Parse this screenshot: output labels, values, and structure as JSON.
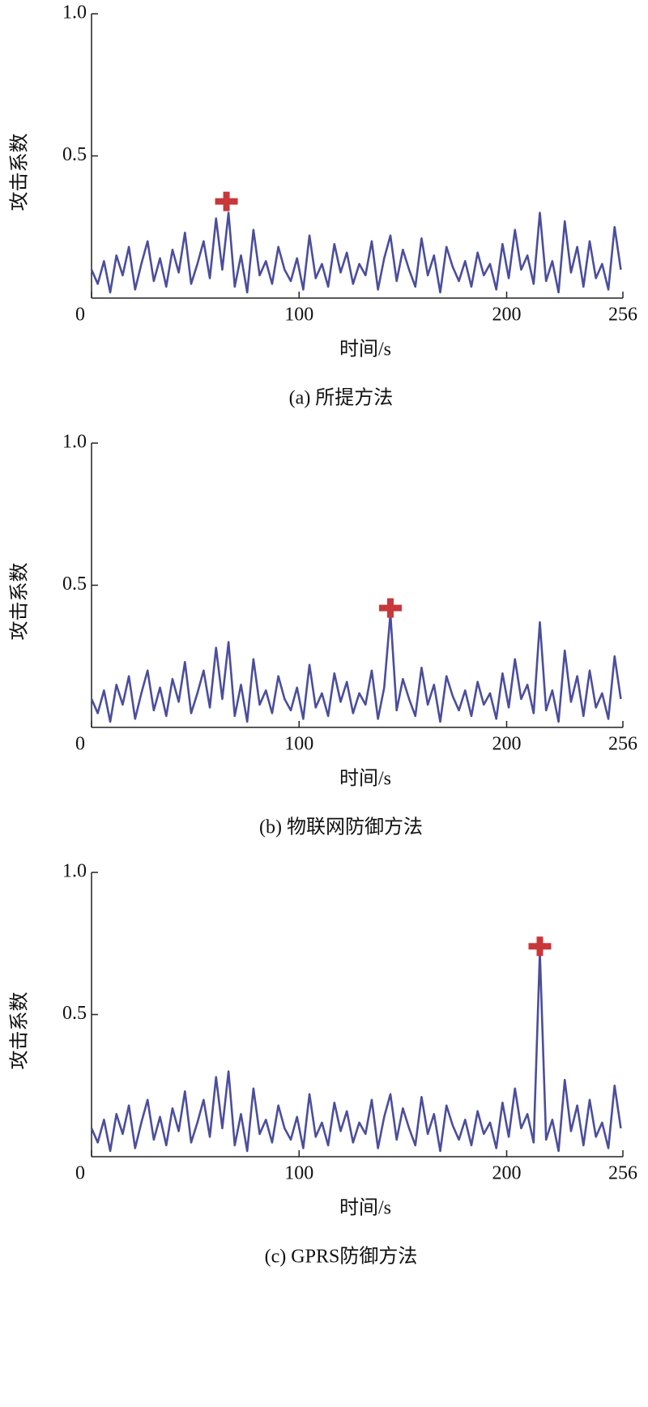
{
  "chart_data": [
    {
      "type": "line",
      "caption": "(a) 所提方法",
      "x_label": "时间/s",
      "y_label": "攻击系数",
      "xlim": [
        0,
        256
      ],
      "xticks": [
        0,
        100,
        200,
        256
      ],
      "ylim": [
        0,
        1
      ],
      "yticks": [
        0.5,
        {
          "value": 1,
          "label": "1.0"
        }
      ],
      "x": [
        0,
        3,
        6,
        9,
        12,
        15,
        18,
        21,
        24,
        27,
        30,
        33,
        36,
        39,
        42,
        45,
        48,
        51,
        54,
        57,
        60,
        63,
        66,
        69,
        72,
        75,
        78,
        81,
        84,
        87,
        90,
        93,
        96,
        99,
        102,
        105,
        108,
        111,
        114,
        117,
        120,
        123,
        126,
        129,
        132,
        135,
        138,
        141,
        144,
        147,
        150,
        153,
        156,
        159,
        162,
        165,
        168,
        171,
        174,
        177,
        180,
        183,
        186,
        189,
        192,
        195,
        198,
        201,
        204,
        207,
        210,
        213,
        216,
        219,
        222,
        225,
        228,
        231,
        234,
        237,
        240,
        243,
        246,
        249,
        252,
        255
      ],
      "series": [
        {
          "color": "#4b4e9b",
          "values": [
            0.1,
            0.05,
            0.13,
            0.02,
            0.15,
            0.08,
            0.18,
            0.03,
            0.12,
            0.2,
            0.06,
            0.14,
            0.04,
            0.17,
            0.09,
            0.23,
            0.05,
            0.12,
            0.2,
            0.07,
            0.28,
            0.1,
            0.3,
            0.04,
            0.15,
            0.02,
            0.24,
            0.08,
            0.13,
            0.05,
            0.18,
            0.1,
            0.06,
            0.14,
            0.03,
            0.22,
            0.07,
            0.12,
            0.04,
            0.19,
            0.09,
            0.16,
            0.05,
            0.12,
            0.08,
            0.2,
            0.03,
            0.14,
            0.22,
            0.06,
            0.17,
            0.1,
            0.04,
            0.21,
            0.08,
            0.15,
            0.02,
            0.18,
            0.11,
            0.06,
            0.13,
            0.04,
            0.16,
            0.08,
            0.12,
            0.03,
            0.19,
            0.07,
            0.24,
            0.1,
            0.15,
            0.05,
            0.3,
            0.06,
            0.13,
            0.02,
            0.27,
            0.09,
            0.18,
            0.04,
            0.2,
            0.07,
            0.12,
            0.03,
            0.25,
            0.1
          ]
        }
      ],
      "marker": {
        "x": 65,
        "y": 0.34,
        "color": "#c8373a"
      }
    },
    {
      "type": "line",
      "caption": "(b) 物联网防御方法",
      "x_label": "时间/s",
      "y_label": "攻击系数",
      "xlim": [
        0,
        256
      ],
      "xticks": [
        0,
        100,
        200,
        256
      ],
      "ylim": [
        0,
        1
      ],
      "yticks": [
        0.5,
        {
          "value": 1,
          "label": "1.0"
        }
      ],
      "x": [
        0,
        3,
        6,
        9,
        12,
        15,
        18,
        21,
        24,
        27,
        30,
        33,
        36,
        39,
        42,
        45,
        48,
        51,
        54,
        57,
        60,
        63,
        66,
        69,
        72,
        75,
        78,
        81,
        84,
        87,
        90,
        93,
        96,
        99,
        102,
        105,
        108,
        111,
        114,
        117,
        120,
        123,
        126,
        129,
        132,
        135,
        138,
        141,
        144,
        147,
        150,
        153,
        156,
        159,
        162,
        165,
        168,
        171,
        174,
        177,
        180,
        183,
        186,
        189,
        192,
        195,
        198,
        201,
        204,
        207,
        210,
        213,
        216,
        219,
        222,
        225,
        228,
        231,
        234,
        237,
        240,
        243,
        246,
        249,
        252,
        255
      ],
      "series": [
        {
          "color": "#4b4e9b",
          "values": [
            0.1,
            0.05,
            0.13,
            0.02,
            0.15,
            0.08,
            0.18,
            0.03,
            0.12,
            0.2,
            0.06,
            0.14,
            0.04,
            0.17,
            0.09,
            0.23,
            0.05,
            0.12,
            0.2,
            0.07,
            0.28,
            0.1,
            0.3,
            0.04,
            0.15,
            0.02,
            0.24,
            0.08,
            0.13,
            0.05,
            0.18,
            0.1,
            0.06,
            0.14,
            0.03,
            0.22,
            0.07,
            0.12,
            0.04,
            0.19,
            0.09,
            0.16,
            0.05,
            0.12,
            0.08,
            0.2,
            0.03,
            0.14,
            0.4,
            0.06,
            0.17,
            0.1,
            0.04,
            0.21,
            0.08,
            0.15,
            0.02,
            0.18,
            0.11,
            0.06,
            0.13,
            0.04,
            0.16,
            0.08,
            0.12,
            0.03,
            0.19,
            0.07,
            0.24,
            0.1,
            0.15,
            0.05,
            0.37,
            0.06,
            0.13,
            0.02,
            0.27,
            0.09,
            0.18,
            0.04,
            0.2,
            0.07,
            0.12,
            0.03,
            0.25,
            0.1
          ]
        }
      ],
      "marker": {
        "x": 144,
        "y": 0.42,
        "color": "#c8373a"
      }
    },
    {
      "type": "line",
      "caption": "(c) GPRS防御方法",
      "x_label": "时间/s",
      "y_label": "攻击系数",
      "xlim": [
        0,
        256
      ],
      "xticks": [
        0,
        100,
        200,
        256
      ],
      "ylim": [
        0,
        1
      ],
      "yticks": [
        0.5,
        {
          "value": 1,
          "label": "1.0"
        }
      ],
      "x": [
        0,
        3,
        6,
        9,
        12,
        15,
        18,
        21,
        24,
        27,
        30,
        33,
        36,
        39,
        42,
        45,
        48,
        51,
        54,
        57,
        60,
        63,
        66,
        69,
        72,
        75,
        78,
        81,
        84,
        87,
        90,
        93,
        96,
        99,
        102,
        105,
        108,
        111,
        114,
        117,
        120,
        123,
        126,
        129,
        132,
        135,
        138,
        141,
        144,
        147,
        150,
        153,
        156,
        159,
        162,
        165,
        168,
        171,
        174,
        177,
        180,
        183,
        186,
        189,
        192,
        195,
        198,
        201,
        204,
        207,
        210,
        213,
        216,
        219,
        222,
        225,
        228,
        231,
        234,
        237,
        240,
        243,
        246,
        249,
        252,
        255
      ],
      "series": [
        {
          "color": "#4b4e9b",
          "values": [
            0.1,
            0.05,
            0.13,
            0.02,
            0.15,
            0.08,
            0.18,
            0.03,
            0.12,
            0.2,
            0.06,
            0.14,
            0.04,
            0.17,
            0.09,
            0.23,
            0.05,
            0.12,
            0.2,
            0.07,
            0.28,
            0.1,
            0.3,
            0.04,
            0.15,
            0.02,
            0.24,
            0.08,
            0.13,
            0.05,
            0.18,
            0.1,
            0.06,
            0.14,
            0.03,
            0.22,
            0.07,
            0.12,
            0.04,
            0.19,
            0.09,
            0.16,
            0.05,
            0.12,
            0.08,
            0.2,
            0.03,
            0.14,
            0.22,
            0.06,
            0.17,
            0.1,
            0.04,
            0.21,
            0.08,
            0.15,
            0.02,
            0.18,
            0.11,
            0.06,
            0.13,
            0.04,
            0.16,
            0.08,
            0.12,
            0.03,
            0.19,
            0.07,
            0.24,
            0.1,
            0.15,
            0.05,
            0.72,
            0.06,
            0.13,
            0.02,
            0.27,
            0.09,
            0.18,
            0.04,
            0.2,
            0.07,
            0.12,
            0.03,
            0.25,
            0.1
          ]
        }
      ],
      "marker": {
        "x": 216,
        "y": 0.74,
        "color": "#c8373a"
      }
    }
  ]
}
